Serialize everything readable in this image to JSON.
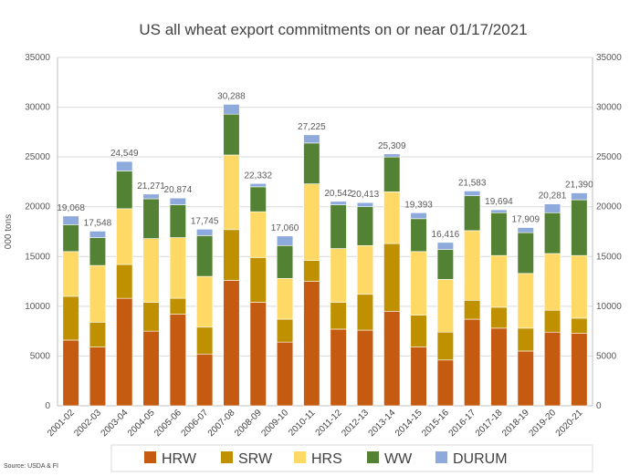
{
  "chart_data": {
    "type": "bar",
    "stacked": true,
    "title": "US all wheat export commitments on or near 01/17/2021",
    "ylabel": "000 tons",
    "source": "Source: USDA & FI",
    "ylim": [
      0,
      35000
    ],
    "yticks": [
      0,
      5000,
      10000,
      15000,
      20000,
      25000,
      30000,
      35000
    ],
    "secondary_yaxis": true,
    "grid": true,
    "legend_position": "bottom",
    "categories": [
      "2001-02",
      "2002-03",
      "2003-04",
      "2004-05",
      "2005-06",
      "2006-07",
      "2007-08",
      "2008-09",
      "2009-10",
      "2010-11",
      "2011-12",
      "2012-13",
      "2013-14",
      "2014-15",
      "2015-16",
      "2016-17",
      "2017-18",
      "2018-19",
      "2019-20",
      "2020-21"
    ],
    "series": [
      {
        "name": "HRW",
        "color": "#C55A11",
        "values": [
          6600,
          5900,
          10800,
          7500,
          9200,
          5200,
          12600,
          10400,
          6400,
          12500,
          7700,
          7600,
          9500,
          5900,
          4600,
          8700,
          7800,
          5500,
          7400,
          7300
        ]
      },
      {
        "name": "SRW",
        "color": "#BF9000",
        "values": [
          4400,
          2500,
          3400,
          2900,
          1600,
          2700,
          5100,
          4500,
          2300,
          2100,
          2700,
          3600,
          6800,
          3200,
          2800,
          1900,
          2100,
          2300,
          2200,
          1500
        ]
      },
      {
        "name": "HRS",
        "color": "#FFD966",
        "values": [
          4500,
          5700,
          5600,
          6400,
          6100,
          5100,
          7500,
          4600,
          4100,
          7700,
          5400,
          4900,
          5200,
          6400,
          5300,
          7000,
          5200,
          5500,
          5700,
          6300
        ]
      },
      {
        "name": "WW",
        "color": "#548235",
        "values": [
          2700,
          2800,
          3800,
          4000,
          3300,
          4100,
          4100,
          2500,
          3300,
          4100,
          4400,
          3900,
          3500,
          3300,
          3000,
          3500,
          4300,
          4100,
          4100,
          5600
        ]
      },
      {
        "name": "DURUM",
        "color": "#8EA9DB",
        "values": [
          868,
          648,
          949,
          471,
          674,
          645,
          988,
          332,
          960,
          825,
          342,
          413,
          309,
          593,
          716,
          483,
          294,
          509,
          881,
          690
        ]
      }
    ],
    "totals": [
      "19,068",
      "17,548",
      "24,549",
      "21,271",
      "20,874",
      "17,745",
      "30,288",
      "22,332",
      "17,060",
      "27,225",
      "20,542",
      "20,413",
      "25,309",
      "19,393",
      "16,416",
      "21,583",
      "19,694",
      "17,909",
      "20,281",
      "21,390"
    ]
  }
}
